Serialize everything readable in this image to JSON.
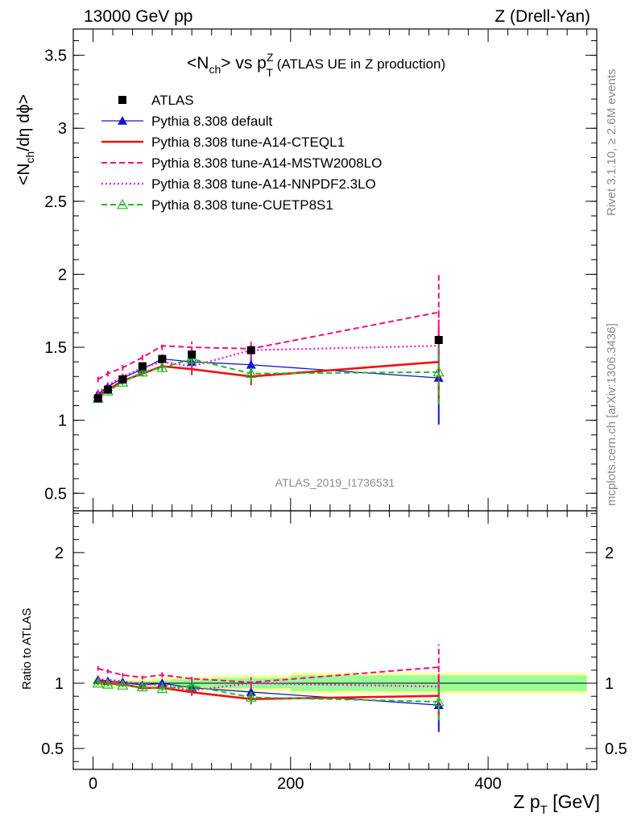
{
  "header": {
    "left": "13000 GeV pp",
    "right": "Z (Drell-Yan)"
  },
  "side_labels": {
    "rivet": "Rivet 3.1.10, ≥ 2.6M events",
    "mcplots": "mcplots.cern.ch [arXiv:1306.3436]"
  },
  "watermark": "ATLAS_2019_I1736531",
  "chart_data": {
    "type": "line",
    "title": {
      "main": "<N",
      "main_sub": "ch",
      "vs": "> vs p",
      "pt_sup": "Z",
      "pt_sub": "T",
      "suffix": " (ATLAS UE in Z production)"
    },
    "xlabel": {
      "main": "Z p",
      "sub": "T",
      "unit": " [GeV]"
    },
    "ylabel": {
      "a": "<N",
      "sub": "ch",
      "b": "/dη dϕ>"
    },
    "ratio_ylabel": "Ratio to ATLAS",
    "xlim": [
      -20,
      510
    ],
    "ylim": [
      0.38,
      3.68
    ],
    "ratio_ylim": [
      0.34,
      2.32
    ],
    "x_ticks": [
      0,
      200,
      400
    ],
    "y_ticks": [
      0.5,
      1,
      1.5,
      2,
      2.5,
      3,
      3.5
    ],
    "y_tick_labels": [
      "0.5",
      "1",
      "1.5",
      "2",
      "2.5",
      "3",
      "3.5"
    ],
    "ratio_y_ticks": [
      0.5,
      1,
      2
    ],
    "ratio_y_tick_labels": [
      "0.5",
      "1",
      "2"
    ],
    "grid": false,
    "legend_position": "top-left",
    "x": [
      5,
      15,
      30,
      50,
      70,
      100,
      160,
      350
    ],
    "data": {
      "name": "ATLAS",
      "values": [
        1.15,
        1.21,
        1.28,
        1.37,
        1.42,
        1.45,
        1.48,
        1.55
      ],
      "band_edges": [
        0,
        10,
        20,
        40,
        60,
        80,
        120,
        200,
        500
      ],
      "stat_band": [
        0.015,
        0.015,
        0.015,
        0.015,
        0.02,
        0.03,
        0.04,
        0.06
      ],
      "total_band": [
        0.03,
        0.03,
        0.03,
        0.03,
        0.04,
        0.05,
        0.06,
        0.08
      ]
    },
    "series": [
      {
        "name": "Pythia 8.308 default",
        "color": "#1414cc",
        "style": "solid",
        "marker": "triangle-filled",
        "values": [
          1.18,
          1.23,
          1.29,
          1.35,
          1.42,
          1.4,
          1.38,
          1.29
        ],
        "errors": [
          0.02,
          0.02,
          0.02,
          0.02,
          0.03,
          0.04,
          0.06,
          0.32
        ]
      },
      {
        "name": "Pythia 8.308 tune-A14-CTEQL1",
        "color": "#ee1111",
        "style": "solid",
        "marker": "none",
        "values": [
          1.17,
          1.21,
          1.27,
          1.32,
          1.37,
          1.35,
          1.3,
          1.4
        ],
        "errors": [
          0.02,
          0.02,
          0.02,
          0.02,
          0.03,
          0.04,
          0.06,
          0.25
        ]
      },
      {
        "name": "Pythia 8.308 tune-A14-MSTW2008LO",
        "color": "#ee1177",
        "style": "dashed",
        "marker": "none",
        "values": [
          1.28,
          1.32,
          1.36,
          1.43,
          1.51,
          1.5,
          1.49,
          1.74
        ],
        "errors": [
          0.02,
          0.02,
          0.02,
          0.02,
          0.03,
          0.04,
          0.06,
          0.27
        ]
      },
      {
        "name": "Pythia 8.308 tune-A14-NNPDF2.3LO",
        "color": "#ff11dd",
        "style": "dotted",
        "marker": "none",
        "values": [
          1.19,
          1.24,
          1.3,
          1.36,
          1.4,
          1.37,
          1.48,
          1.51
        ],
        "errors": [
          0.02,
          0.02,
          0.02,
          0.02,
          0.03,
          0.04,
          0.06,
          0.25
        ]
      },
      {
        "name": "Pythia 8.308 tune-CUETP8S1",
        "color": "#22bb22",
        "style": "dashed",
        "marker": "triangle-open",
        "values": [
          1.15,
          1.2,
          1.26,
          1.33,
          1.36,
          1.42,
          1.32,
          1.33
        ],
        "errors": [
          0.02,
          0.02,
          0.02,
          0.02,
          0.03,
          0.04,
          0.06,
          0.22
        ]
      }
    ]
  }
}
